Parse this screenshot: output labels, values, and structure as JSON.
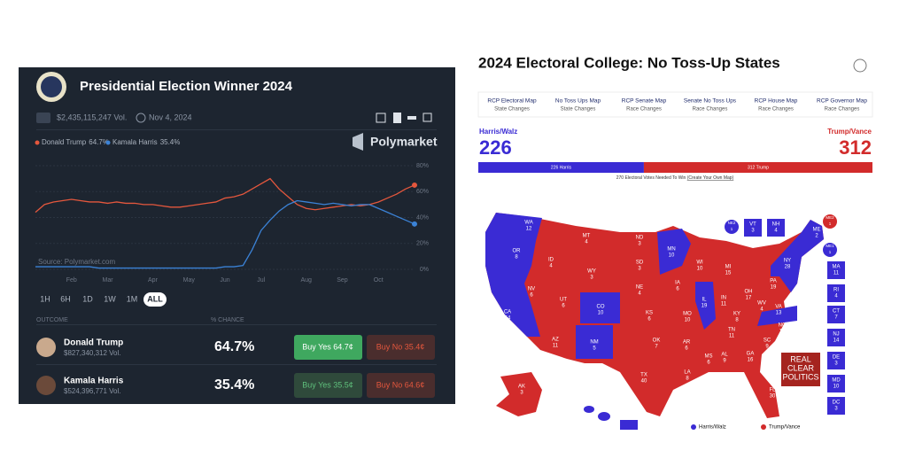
{
  "polymarket": {
    "title": "Presidential Election Winner 2024",
    "volume": "$2,435,115,247 Vol.",
    "date": "Nov 4, 2024",
    "brand": "Polymarket",
    "source": "Source: Polymarket.com",
    "timeframes": [
      "1H",
      "6H",
      "1D",
      "1W",
      "1M",
      "ALL"
    ],
    "headers": {
      "outcome": "OUTCOME",
      "chance": "% CHANCE"
    },
    "outcomes": [
      {
        "name": "Donald Trump",
        "volume": "$827,340,312 Vol.",
        "chance": "64.7%",
        "buy_yes": "Buy Yes 64.7¢",
        "buy_no": "Buy No 35.4¢"
      },
      {
        "name": "Kamala Harris",
        "volume": "$524,396,771 Vol.",
        "chance": "35.4%",
        "buy_yes": "Buy Yes 35.5¢",
        "buy_no": "Buy No 64.6¢"
      }
    ]
  },
  "chart_data": {
    "type": "line",
    "categories": [
      null,
      null,
      null,
      null,
      "Feb",
      null,
      null,
      null,
      "Mar",
      null,
      null,
      null,
      null,
      "Apr",
      null,
      null,
      null,
      "May",
      null,
      null,
      null,
      "Jun",
      null,
      null,
      null,
      "Jul",
      null,
      null,
      null,
      null,
      "Aug",
      null,
      null,
      null,
      "Sep",
      null,
      null,
      null,
      "Oct",
      null,
      null,
      null,
      null
    ],
    "series": [
      {
        "name": "Donald Trump",
        "color": "#e4573d",
        "values": [
          44,
          50,
          52,
          53,
          54,
          53,
          52,
          52,
          51,
          52,
          51,
          51,
          50,
          50,
          49,
          48,
          48,
          49,
          50,
          51,
          52,
          55,
          56,
          58,
          62,
          66,
          70,
          62,
          56,
          50,
          47,
          46,
          47,
          48,
          49,
          50,
          49,
          50,
          52,
          55,
          58,
          62,
          65
        ]
      },
      {
        "name": "Kamala Harris",
        "color": "#3b82d6",
        "values": [
          2,
          2,
          2,
          2,
          2,
          2,
          2,
          1,
          1,
          1,
          1,
          1,
          1,
          1,
          1,
          1,
          1,
          1,
          1,
          1,
          1,
          2,
          2,
          3,
          15,
          30,
          38,
          45,
          50,
          53,
          52,
          51,
          50,
          51,
          50,
          49,
          50,
          50,
          47,
          44,
          41,
          38,
          35
        ]
      }
    ],
    "legend_labels": [
      "64.7%",
      "35.4%"
    ],
    "ylim": [
      0,
      80
    ],
    "yticks": [
      {
        "value": 0,
        "label": "0%"
      },
      {
        "value": 20,
        "label": "20%"
      },
      {
        "value": 40,
        "label": "40%"
      },
      {
        "value": 60,
        "label": "60%"
      },
      {
        "value": 80,
        "label": "80%"
      }
    ],
    "grid": true
  },
  "rcp": {
    "title": "2024 Electoral College: No Toss-Up States",
    "tabs": [
      {
        "title": "RCP Electoral Map",
        "sub": "State Changes"
      },
      {
        "title": "No Toss Ups Map",
        "sub": "State Changes"
      },
      {
        "title": "RCP Senate Map",
        "sub": "Race Changes"
      },
      {
        "title": "Senate No Toss Ups",
        "sub": "Race Changes"
      },
      {
        "title": "RCP House Map",
        "sub": "Race Changes"
      },
      {
        "title": "RCP Governor Map",
        "sub": "Race Changes"
      }
    ],
    "harris": {
      "label": "Harris/Walz",
      "votes": 226,
      "bar_label": "226 Harris",
      "color": "#3a2bd4"
    },
    "trump": {
      "label": "Trump/Vance",
      "votes": 312,
      "bar_label": "312 Trump",
      "color": "#d22b2b"
    },
    "note": "270 Electoral Votes Needed To Win ",
    "note_link": "(Create Your Own Map)",
    "logo": [
      "REAL",
      "CLEAR",
      "POLITICS"
    ],
    "states": [
      {
        "label": "WA",
        "votes": 12,
        "color": "#3a2bd4"
      },
      {
        "label": "OR",
        "votes": 8,
        "color": "#3a2bd4"
      },
      {
        "label": "CA",
        "votes": 54,
        "color": "#3a2bd4"
      },
      {
        "label": "NV",
        "votes": 6,
        "color": "#d22b2b"
      },
      {
        "label": "ID",
        "votes": 4,
        "color": "#d22b2b"
      },
      {
        "label": "MT",
        "votes": 4,
        "color": "#d22b2b"
      },
      {
        "label": "WY",
        "votes": 3,
        "color": "#d22b2b"
      },
      {
        "label": "UT",
        "votes": 6,
        "color": "#d22b2b"
      },
      {
        "label": "AZ",
        "votes": 11,
        "color": "#d22b2b"
      },
      {
        "label": "CO",
        "votes": 10,
        "color": "#3a2bd4"
      },
      {
        "label": "NM",
        "votes": 5,
        "color": "#3a2bd4"
      },
      {
        "label": "ND",
        "votes": 3,
        "color": "#d22b2b"
      },
      {
        "label": "SD",
        "votes": 3,
        "color": "#d22b2b"
      },
      {
        "label": "NE",
        "votes": 4,
        "color": "#d22b2b"
      },
      {
        "label": "KS",
        "votes": 6,
        "color": "#d22b2b"
      },
      {
        "label": "OK",
        "votes": 7,
        "color": "#d22b2b"
      },
      {
        "label": "TX",
        "votes": 40,
        "color": "#d22b2b"
      },
      {
        "label": "MN",
        "votes": 10,
        "color": "#3a2bd4"
      },
      {
        "label": "IA",
        "votes": 6,
        "color": "#d22b2b"
      },
      {
        "label": "MO",
        "votes": 10,
        "color": "#d22b2b"
      },
      {
        "label": "AR",
        "votes": 6,
        "color": "#d22b2b"
      },
      {
        "label": "LA",
        "votes": 8,
        "color": "#d22b2b"
      },
      {
        "label": "WI",
        "votes": 10,
        "color": "#d22b2b"
      },
      {
        "label": "IL",
        "votes": 19,
        "color": "#3a2bd4"
      },
      {
        "label": "MI",
        "votes": 15,
        "color": "#d22b2b"
      },
      {
        "label": "IN",
        "votes": 11,
        "color": "#d22b2b"
      },
      {
        "label": "OH",
        "votes": 17,
        "color": "#d22b2b"
      },
      {
        "label": "KY",
        "votes": 8,
        "color": "#d22b2b"
      },
      {
        "label": "TN",
        "votes": 11,
        "color": "#d22b2b"
      },
      {
        "label": "MS",
        "votes": 6,
        "color": "#d22b2b"
      },
      {
        "label": "AL",
        "votes": 9,
        "color": "#d22b2b"
      },
      {
        "label": "GA",
        "votes": 16,
        "color": "#d22b2b"
      },
      {
        "label": "FL",
        "votes": 30,
        "color": "#d22b2b"
      },
      {
        "label": "SC",
        "votes": 9,
        "color": "#d22b2b"
      },
      {
        "label": "NC",
        "votes": 16,
        "color": "#d22b2b"
      },
      {
        "label": "VA",
        "votes": 13,
        "color": "#3a2bd4"
      },
      {
        "label": "WV",
        "votes": 4,
        "color": "#d22b2b"
      },
      {
        "label": "PA",
        "votes": 19,
        "color": "#d22b2b"
      },
      {
        "label": "NY",
        "votes": 28,
        "color": "#3a2bd4"
      },
      {
        "label": "ME",
        "votes": 2,
        "color": "#3a2bd4"
      },
      {
        "label": "AK",
        "votes": 3,
        "color": "#d22b2b"
      },
      {
        "label": "NE2",
        "votes": 1,
        "color": "#3a2bd4"
      },
      {
        "label": "VT",
        "votes": 3,
        "color": "#3a2bd4"
      },
      {
        "label": "NH",
        "votes": 4,
        "color": "#3a2bd4"
      },
      {
        "label": "ME2",
        "votes": 1,
        "color": "#d22b2b"
      },
      {
        "label": "ME1",
        "votes": 1,
        "color": "#3a2bd4"
      },
      {
        "label": "MA",
        "votes": 11,
        "color": "#3a2bd4"
      },
      {
        "label": "RI",
        "votes": 4,
        "color": "#3a2bd4"
      },
      {
        "label": "CT",
        "votes": 7,
        "color": "#3a2bd4"
      },
      {
        "label": "NJ",
        "votes": 14,
        "color": "#3a2bd4"
      },
      {
        "label": "DE",
        "votes": 3,
        "color": "#3a2bd4"
      },
      {
        "label": "MD",
        "votes": 10,
        "color": "#3a2bd4"
      },
      {
        "label": "DC",
        "votes": 3,
        "color": "#3a2bd4"
      }
    ]
  }
}
